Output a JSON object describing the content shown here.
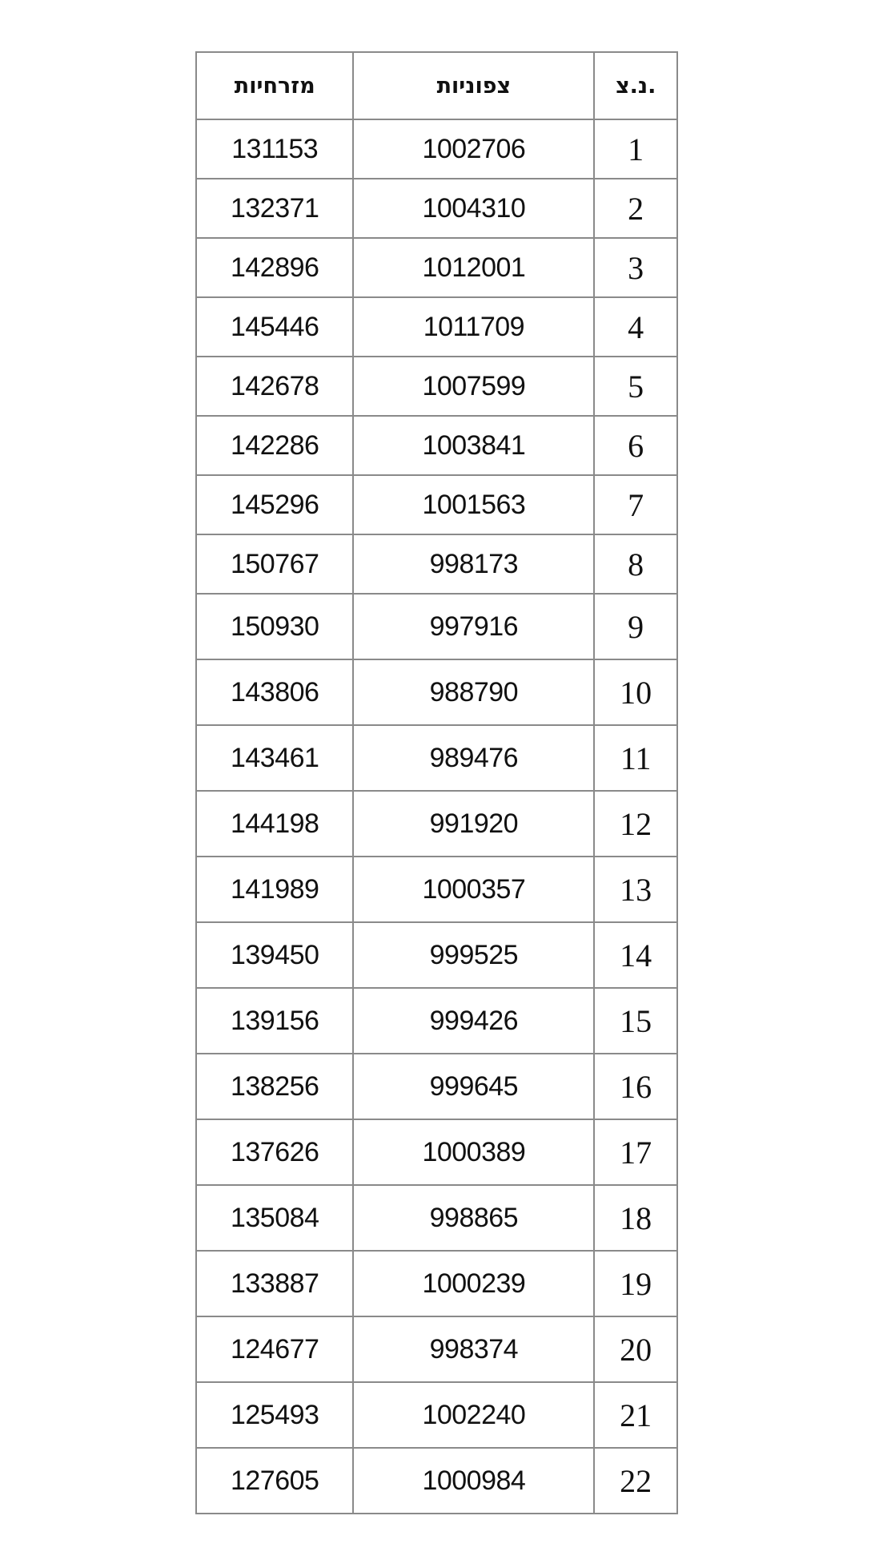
{
  "table": {
    "headers": {
      "east": "מזרחיות",
      "north": "צפוניות",
      "index": "נ.צ."
    },
    "rows": [
      {
        "index": "1",
        "north": "1002706",
        "east": "131153"
      },
      {
        "index": "2",
        "north": "1004310",
        "east": "132371"
      },
      {
        "index": "3",
        "north": "1012001",
        "east": "142896"
      },
      {
        "index": "4",
        "north": "1011709",
        "east": "145446"
      },
      {
        "index": "5",
        "north": "1007599",
        "east": "142678"
      },
      {
        "index": "6",
        "north": "1003841",
        "east": "142286"
      },
      {
        "index": "7",
        "north": "1001563",
        "east": "145296"
      },
      {
        "index": "8",
        "north": "998173",
        "east": "150767"
      },
      {
        "index": "9",
        "north": "997916",
        "east": "150930"
      },
      {
        "index": "10",
        "north": "988790",
        "east": "143806"
      },
      {
        "index": "11",
        "north": "989476",
        "east": "143461"
      },
      {
        "index": "12",
        "north": "991920",
        "east": "144198"
      },
      {
        "index": "13",
        "north": "1000357",
        "east": "141989"
      },
      {
        "index": "14",
        "north": "999525",
        "east": "139450"
      },
      {
        "index": "15",
        "north": "999426",
        "east": "139156"
      },
      {
        "index": "16",
        "north": "999645",
        "east": "138256"
      },
      {
        "index": "17",
        "north": "1000389",
        "east": "137626"
      },
      {
        "index": "18",
        "north": "998865",
        "east": "135084"
      },
      {
        "index": "19",
        "north": "1000239",
        "east": "133887"
      },
      {
        "index": "20",
        "north": "998374",
        "east": "124677"
      },
      {
        "index": "21",
        "north": "1002240",
        "east": "125493"
      },
      {
        "index": "22",
        "north": "1000984",
        "east": "127605"
      }
    ]
  }
}
